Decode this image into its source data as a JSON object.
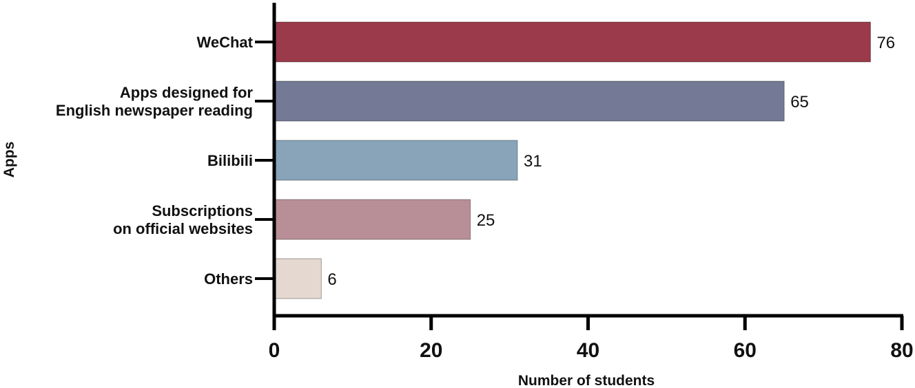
{
  "chart_data": {
    "type": "bar",
    "orientation": "horizontal",
    "categories": [
      [
        "WeChat"
      ],
      [
        "Apps designed for",
        "English newspaper reading"
      ],
      [
        "Bilibili"
      ],
      [
        "Subscriptions",
        "on official websites"
      ],
      [
        "Others"
      ]
    ],
    "values": [
      76,
      65,
      31,
      25,
      6
    ],
    "colors": [
      "#9A3A4A",
      "#747A96",
      "#89A4B8",
      "#B88E97",
      "#E4D8D1"
    ],
    "xlabel": "Number of students",
    "ylabel": "Apps",
    "xlim": [
      0,
      80
    ],
    "xticks": [
      0,
      20,
      40,
      60,
      80
    ],
    "grid": false,
    "data_labels": true
  }
}
